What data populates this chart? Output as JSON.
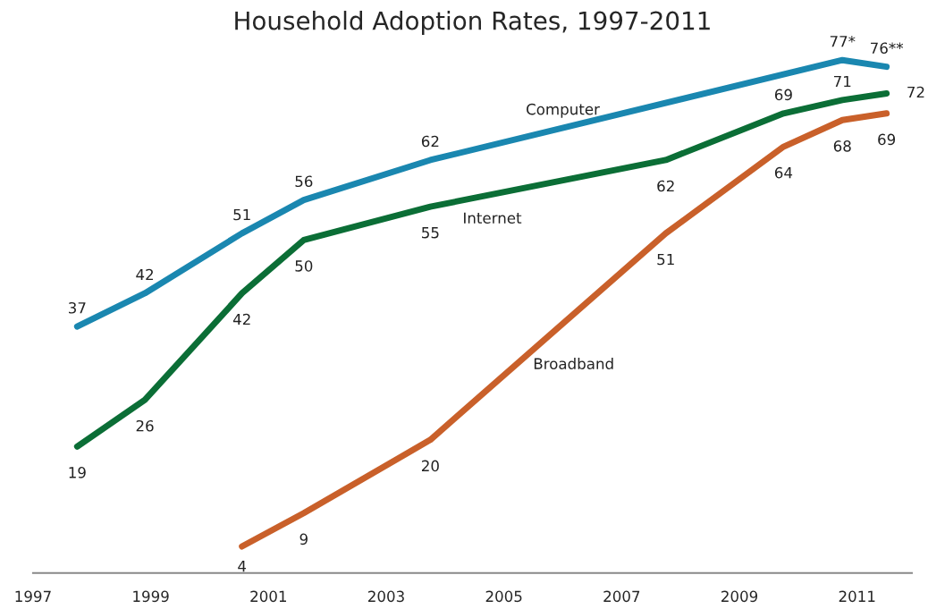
{
  "chart_data": {
    "type": "line",
    "title": "Household Adoption Rates, 1997-2011",
    "xlim": [
      1997,
      2011.93
    ],
    "xticks": [
      1997,
      1999,
      2001,
      2003,
      2005,
      2007,
      2009,
      2011
    ],
    "tick_labels": "x",
    "grid": false,
    "legend": false,
    "marker": "none",
    "line_style": "solid",
    "data_labels": true,
    "series": [
      {
        "name": "Computer",
        "color": "#1a87b0",
        "x": [
          1997.75,
          1998.9,
          2000.55,
          2001.6,
          2003.75,
          2010.75,
          2011.5
        ],
        "values": [
          37,
          42,
          51,
          56,
          62,
          77,
          76
        ],
        "value_labels": [
          "37",
          "42",
          "51",
          "56",
          "62",
          "77*",
          "76**"
        ]
      },
      {
        "name": "Internet",
        "color": "#0b6e36",
        "x": [
          1997.75,
          1998.9,
          2000.55,
          2001.6,
          2003.75,
          2007.75,
          2009.75,
          2010.75,
          2011.5
        ],
        "values": [
          19,
          26,
          42,
          50,
          55,
          62,
          69,
          71,
          72
        ]
      },
      {
        "name": "Broadband",
        "color": "#c9602a",
        "x": [
          2000.55,
          2001.6,
          2003.75,
          2007.75,
          2009.75,
          2010.75,
          2011.5
        ],
        "values": [
          4,
          9,
          20,
          51,
          64,
          68,
          69
        ]
      }
    ]
  }
}
